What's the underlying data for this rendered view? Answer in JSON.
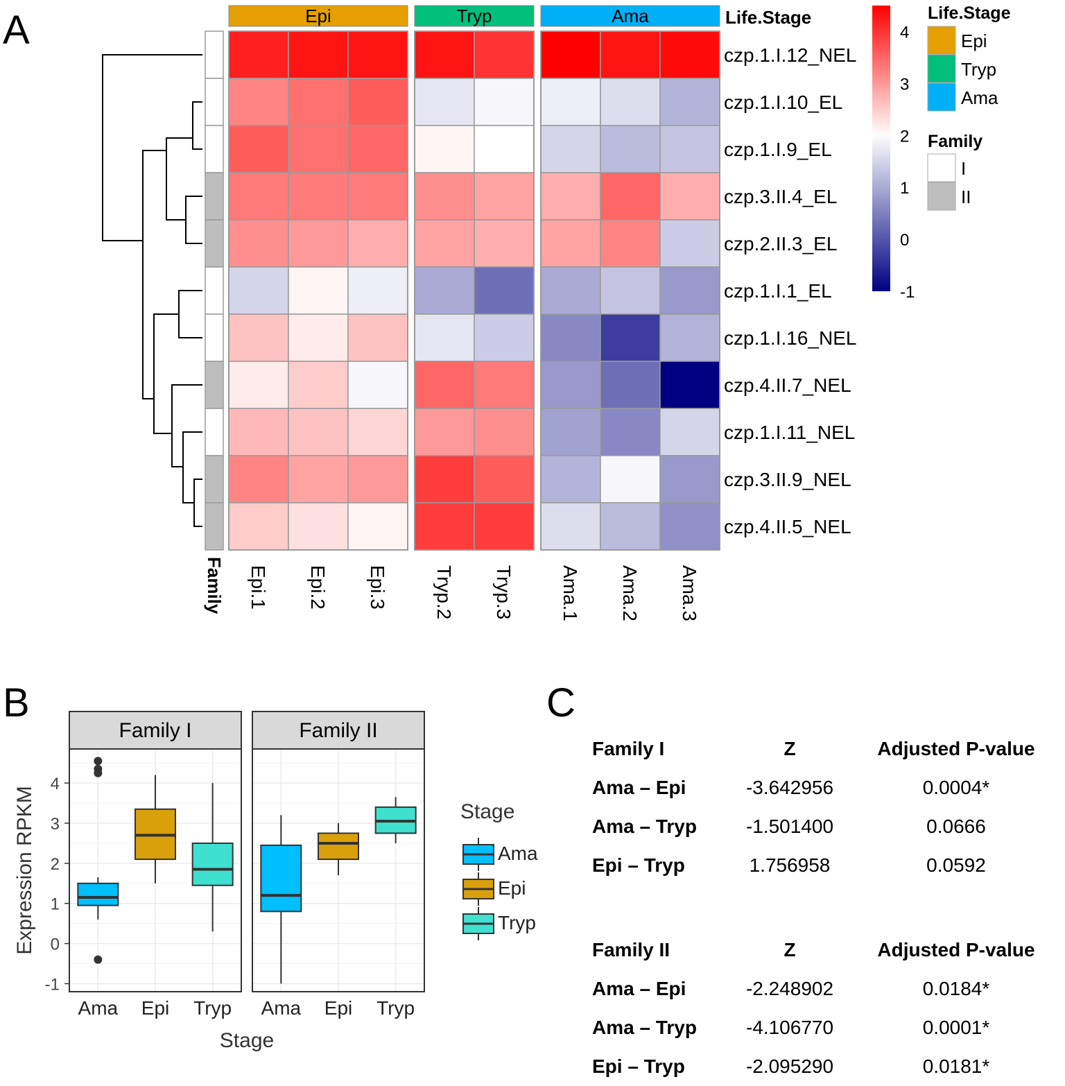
{
  "panels": {
    "a": "A",
    "b": "B",
    "c": "C"
  },
  "chart_data": [
    {
      "type": "heatmap",
      "panel": "A",
      "color_scale": {
        "min": -1,
        "max": 4.5,
        "ticks": [
          4,
          3,
          2,
          1,
          0,
          -1
        ],
        "low_color": "#000080",
        "mid_color": "#ffffff",
        "high_color": "#ff0000",
        "mid_value": 2
      },
      "life_stage_groups": [
        {
          "label": "Epi",
          "color": "#E69F00",
          "samples": [
            "Epi.1",
            "Epi.2",
            "Epi.3"
          ]
        },
        {
          "label": "Tryp",
          "color": "#00BF7D",
          "samples": [
            "Tryp.2",
            "Tryp.3"
          ]
        },
        {
          "label": "Ama",
          "color": "#00B0F6",
          "samples": [
            "Ama.1",
            "Ama.2",
            "Ama.3"
          ]
        }
      ],
      "annotation_col_title": "Life.Stage",
      "annotation_row_title": "Family",
      "family_colors": {
        "I": "#FFFFFF",
        "II": "#BEBEBE"
      },
      "rows": [
        "czp.1.I.12_NEL",
        "czp.1.I.10_EL",
        "czp.1.I.9_EL",
        "czp.3.II.4_EL",
        "czp.2.II.3_EL",
        "czp.1.I.1_EL",
        "czp.1.I.16_NEL",
        "czp.4.II.7_NEL",
        "czp.1.I.11_NEL",
        "czp.3.II.9_NEL",
        "czp.4.II.5_NEL"
      ],
      "row_family": [
        "I",
        "I",
        "I",
        "II",
        "II",
        "I",
        "I",
        "II",
        "I",
        "II",
        "II"
      ],
      "values": [
        [
          4.2,
          4.3,
          4.3,
          4.3,
          4.0,
          4.5,
          4.3,
          4.4
        ],
        [
          3.2,
          3.4,
          3.6,
          1.7,
          1.9,
          1.8,
          1.6,
          1.1
        ],
        [
          3.6,
          3.4,
          3.5,
          2.1,
          2.0,
          1.5,
          1.2,
          1.3
        ],
        [
          3.3,
          3.3,
          3.3,
          3.1,
          2.9,
          2.8,
          3.5,
          2.8
        ],
        [
          3.1,
          3.0,
          2.8,
          2.9,
          2.8,
          2.9,
          3.2,
          1.4
        ],
        [
          1.5,
          2.1,
          1.8,
          1.0,
          0.3,
          1.0,
          1.3,
          0.8
        ],
        [
          2.6,
          2.2,
          2.6,
          1.7,
          1.4,
          0.6,
          -0.3,
          1.1
        ],
        [
          2.2,
          2.5,
          1.9,
          3.5,
          3.3,
          0.8,
          0.3,
          -1.0
        ],
        [
          2.7,
          2.6,
          2.4,
          3.0,
          3.1,
          0.9,
          0.6,
          1.5
        ],
        [
          3.2,
          2.9,
          3.0,
          3.9,
          3.6,
          1.1,
          1.9,
          0.8
        ],
        [
          2.5,
          2.3,
          2.1,
          3.9,
          3.9,
          1.6,
          1.2,
          0.7
        ]
      ],
      "legend": {
        "life_stage_title": "Life.Stage",
        "life_stage_entries": [
          "Epi",
          "Tryp",
          "Ama"
        ],
        "family_title": "Family",
        "family_entries": [
          "I",
          "II"
        ]
      }
    },
    {
      "type": "box",
      "panel": "B",
      "title": "",
      "xlabel": "Stage",
      "ylabel": "Expression RPKM",
      "ylim": [
        -1.2,
        4.85
      ],
      "yticks": [
        -1,
        0,
        1,
        2,
        3,
        4
      ],
      "facets": [
        {
          "label": "Family I",
          "categories": [
            "Ama",
            "Epi",
            "Tryp"
          ],
          "boxes": [
            {
              "category": "Ama",
              "min": 0.6,
              "q1": 0.95,
              "median": 1.15,
              "q3": 1.5,
              "max": 1.65,
              "outliers": [
                4.55,
                4.35,
                4.25,
                -0.4
              ]
            },
            {
              "category": "Epi",
              "min": 1.5,
              "q1": 2.1,
              "median": 2.7,
              "q3": 3.35,
              "max": 4.2,
              "outliers": []
            },
            {
              "category": "Tryp",
              "min": 0.3,
              "q1": 1.45,
              "median": 1.85,
              "q3": 2.5,
              "max": 4.0,
              "outliers": []
            }
          ]
        },
        {
          "label": "Family II",
          "categories": [
            "Ama",
            "Epi",
            "Tryp"
          ],
          "boxes": [
            {
              "category": "Ama",
              "min": -1.0,
              "q1": 0.8,
              "median": 1.2,
              "q3": 2.45,
              "max": 3.2,
              "outliers": []
            },
            {
              "category": "Epi",
              "min": 1.7,
              "q1": 2.1,
              "median": 2.5,
              "q3": 2.75,
              "max": 3.0,
              "outliers": []
            },
            {
              "category": "Tryp",
              "min": 2.5,
              "q1": 2.75,
              "median": 3.05,
              "q3": 3.4,
              "max": 3.65,
              "outliers": []
            }
          ]
        }
      ],
      "legend": {
        "title": "Stage",
        "entries": [
          {
            "label": "Ama",
            "color": "#00BFFF"
          },
          {
            "label": "Epi",
            "color": "#DAA00C"
          },
          {
            "label": "Tryp",
            "color": "#40E0D0"
          }
        ]
      }
    },
    {
      "type": "table",
      "panel": "C",
      "tables": [
        {
          "header": [
            "Family I",
            "Z",
            "Adjusted P-value"
          ],
          "rows": [
            [
              "Ama – Epi",
              "-3.642956",
              "0.0004*"
            ],
            [
              "Ama – Tryp",
              "-1.501400",
              "0.0666"
            ],
            [
              "Epi – Tryp",
              "1.756958",
              "0.0592"
            ]
          ]
        },
        {
          "header": [
            "Family II",
            "Z",
            "Adjusted P-value"
          ],
          "rows": [
            [
              "Ama – Epi",
              "-2.248902",
              "0.0184*"
            ],
            [
              "Ama – Tryp",
              "-4.106770",
              "0.0001*"
            ],
            [
              "Epi – Tryp",
              "-2.095290",
              "0.0181*"
            ]
          ]
        }
      ]
    }
  ]
}
